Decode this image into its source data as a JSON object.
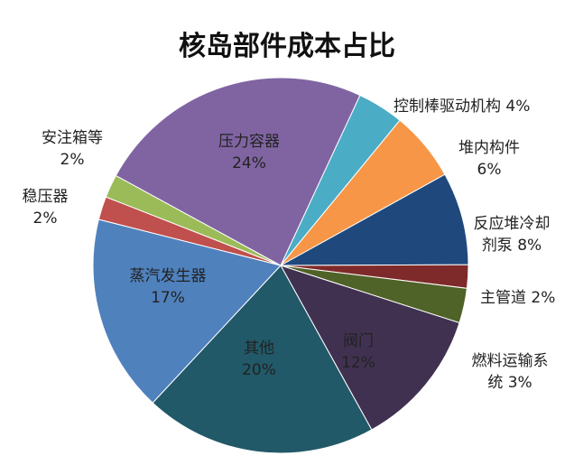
{
  "chart_data": {
    "type": "pie",
    "title": "核岛部件成本占比",
    "slices": [
      {
        "label": "控制棒驱动机构",
        "value": 4,
        "value_label": "4%",
        "color": "#4BACC6"
      },
      {
        "label": "堆内构件",
        "value": 6,
        "value_label": "6%",
        "color": "#F79646"
      },
      {
        "label": "反应堆冷却剂泵",
        "value": 8,
        "value_label": "8%",
        "color": "#1F497D"
      },
      {
        "label": "主管道",
        "value": 2,
        "value_label": "2%",
        "color": "#7F2A2A"
      },
      {
        "label": "燃料运输系统",
        "value": 3,
        "value_label": "3%",
        "color": "#4F6228"
      },
      {
        "label": "阀门",
        "value": 12,
        "value_label": "12%",
        "color": "#403151"
      },
      {
        "label": "其他",
        "value": 20,
        "value_label": "20%",
        "color": "#215968"
      },
      {
        "label": "蒸汽发生器",
        "value": 17,
        "value_label": "17%",
        "color": "#4F81BD"
      },
      {
        "label": "稳压器",
        "value": 2,
        "value_label": "2%",
        "color": "#C0504D"
      },
      {
        "label": "安注箱等",
        "value": 2,
        "value_label": "2%",
        "color": "#9BBB59"
      },
      {
        "label": "压力容器",
        "value": 24,
        "value_label": "24%",
        "color": "#8064A2"
      }
    ]
  },
  "labels": {
    "kzb_1": "控制棒驱动机构",
    "kzb_2": "4%",
    "dng_1": "堆内构件",
    "dng_2": "6%",
    "fy_1": "反应堆冷却",
    "fy_2": "剂泵 8%",
    "zgd": "主管道 2%",
    "rl_1": "燃料运输系",
    "rl_2": "统 3%",
    "fm_1": "阀门",
    "fm_2": "12%",
    "qt_1": "其他",
    "qt_2": "20%",
    "zq_1": "蒸汽发生器",
    "zq_2": "17%",
    "wy_1": "稳压器",
    "wy_2": "2%",
    "az_1": "安注箱等",
    "az_2": "2%",
    "yl_1": "压力容器",
    "yl_2": "24%"
  }
}
